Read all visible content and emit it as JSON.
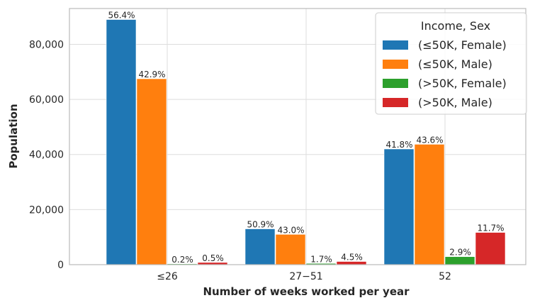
{
  "chart_data": {
    "type": "bar",
    "xlabel": "Number of weeks worked per year",
    "ylabel": "Population",
    "categories": [
      "≤26",
      "27−51",
      "52"
    ],
    "ylim": [
      0,
      93000
    ],
    "yticks": [
      0,
      20000,
      40000,
      60000,
      80000
    ],
    "ytick_labels": [
      "0",
      "20,000",
      "40,000",
      "60,000",
      "80,000"
    ],
    "grid": true,
    "legend": {
      "title": "Income, Sex",
      "placement": "top-right"
    },
    "series": [
      {
        "name": "(≤50K, Female)",
        "color": "#1f77b4",
        "values": [
          89000,
          13000,
          42000
        ],
        "labels": [
          "56.4%",
          "50.9%",
          "41.8%"
        ]
      },
      {
        "name": "(≤50K, Male)",
        "color": "#ff7f0e",
        "values": [
          67500,
          11000,
          43700
        ],
        "labels": [
          "42.9%",
          "43.0%",
          "43.6%"
        ]
      },
      {
        "name": "(>50K, Female)",
        "color": "#2ca02c",
        "values": [
          300,
          450,
          2900
        ],
        "labels": [
          "0.2%",
          "1.7%",
          "2.9%"
        ]
      },
      {
        "name": "(>50K, Male)",
        "color": "#d62728",
        "values": [
          800,
          1150,
          11700
        ],
        "labels": [
          "0.5%",
          "4.5%",
          "11.7%"
        ]
      }
    ]
  }
}
